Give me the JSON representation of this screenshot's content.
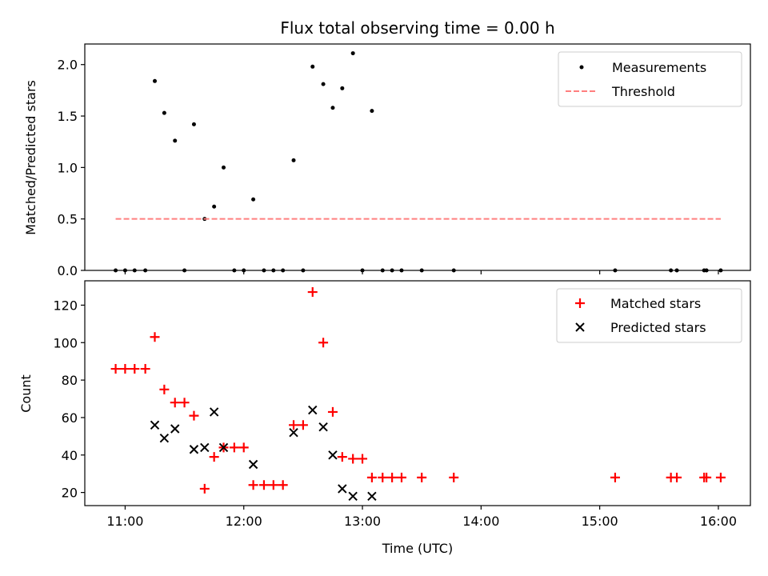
{
  "chart_data": [
    {
      "type": "scatter",
      "title": "Flux total observing time = 0.00 h",
      "xlabel": "",
      "ylabel": "Matched/Predicted stars",
      "xlim": [
        10.66,
        16.27
      ],
      "ylim": [
        0,
        2.2
      ],
      "x_ticks": [
        11,
        12,
        13,
        14,
        15,
        16
      ],
      "x_tick_labels": [],
      "y_ticks": [
        0.0,
        0.5,
        1.0,
        1.5,
        2.0
      ],
      "y_tick_labels": [
        "0.0",
        "0.5",
        "1.0",
        "1.5",
        "2.0"
      ],
      "legend_position": "top-right",
      "series": [
        {
          "name": "Measurements",
          "kind": "points",
          "color": "#000000",
          "x": [
            10.92,
            11.0,
            11.08,
            11.17,
            11.25,
            11.33,
            11.42,
            11.5,
            11.58,
            11.67,
            11.75,
            11.83,
            11.92,
            12.0,
            12.08,
            12.17,
            12.25,
            12.33,
            12.42,
            12.5,
            12.58,
            12.67,
            12.75,
            12.83,
            12.92,
            13.0,
            13.08,
            13.17,
            13.25,
            13.33,
            13.5,
            13.77,
            15.13,
            15.6,
            15.65,
            15.88,
            15.9,
            16.02
          ],
          "y": [
            0,
            0,
            0,
            0,
            1.84,
            1.53,
            1.26,
            0,
            1.42,
            0.5,
            0.62,
            1.0,
            0,
            0,
            0.69,
            0,
            0,
            0,
            1.07,
            0,
            1.98,
            1.81,
            1.58,
            1.77,
            2.11,
            0,
            1.55,
            0,
            0,
            0,
            0,
            0,
            0,
            0,
            0,
            0,
            0,
            0
          ]
        },
        {
          "name": "Threshold",
          "kind": "dashed-line",
          "color": "#ff7f7f",
          "x": [
            10.92,
            16.02
          ],
          "y": [
            0.5,
            0.5
          ]
        }
      ]
    },
    {
      "type": "scatter",
      "title": "",
      "xlabel": "Time (UTC)",
      "ylabel": "Count",
      "xlim": [
        10.66,
        16.27
      ],
      "ylim": [
        13,
        133
      ],
      "x_ticks": [
        11,
        12,
        13,
        14,
        15,
        16
      ],
      "x_tick_labels": [
        "11:00",
        "12:00",
        "13:00",
        "14:00",
        "15:00",
        "16:00"
      ],
      "y_ticks": [
        20,
        40,
        60,
        80,
        100,
        120
      ],
      "y_tick_labels": [
        "20",
        "40",
        "60",
        "80",
        "100",
        "120"
      ],
      "legend_position": "top-right",
      "series": [
        {
          "name": "Matched stars",
          "marker": "+",
          "color": "#ff0000",
          "x": [
            10.92,
            11.0,
            11.08,
            11.17,
            11.25,
            11.33,
            11.42,
            11.5,
            11.58,
            11.67,
            11.75,
            11.83,
            11.92,
            12.0,
            12.08,
            12.17,
            12.25,
            12.33,
            12.42,
            12.5,
            12.58,
            12.67,
            12.75,
            12.83,
            12.92,
            13.0,
            13.08,
            13.17,
            13.25,
            13.33,
            13.5,
            13.77,
            15.13,
            15.6,
            15.65,
            15.88,
            15.9,
            16.02
          ],
          "y": [
            86,
            86,
            86,
            86,
            103,
            75,
            68,
            68,
            61,
            22,
            39,
            44,
            44,
            44,
            24,
            24,
            24,
            24,
            56,
            56,
            127,
            100,
            63,
            39,
            38,
            38,
            28,
            28,
            28,
            28,
            28,
            28,
            28,
            28,
            28,
            28,
            28,
            28
          ]
        },
        {
          "name": "Predicted stars",
          "marker": "x",
          "color": "#000000",
          "x": [
            11.25,
            11.33,
            11.42,
            11.58,
            11.67,
            11.75,
            11.83,
            12.08,
            12.42,
            12.58,
            12.67,
            12.75,
            12.83,
            12.92,
            13.08
          ],
          "y": [
            56,
            49,
            54,
            43,
            44,
            63,
            44,
            35,
            52,
            64,
            55,
            40,
            22,
            18,
            18
          ]
        }
      ]
    }
  ]
}
